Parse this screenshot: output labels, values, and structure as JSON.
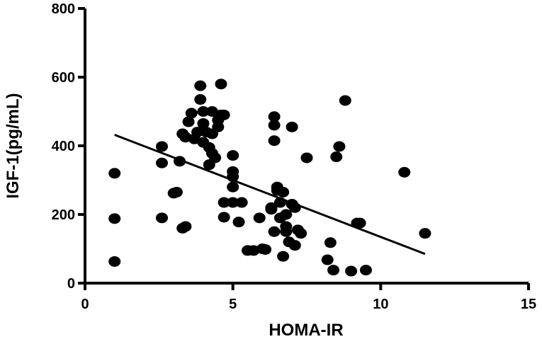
{
  "chart_data": {
    "type": "scatter",
    "title": "",
    "xlabel": "HOMA-IR",
    "ylabel": "IGF-1(pg/mL)",
    "xlim": [
      0,
      15
    ],
    "ylim": [
      0,
      800
    ],
    "xticks": [
      0,
      5,
      10,
      15
    ],
    "yticks": [
      0,
      200,
      400,
      600,
      800
    ],
    "grid": false,
    "legend": "none",
    "points": [
      [
        1.0,
        320
      ],
      [
        1.0,
        188
      ],
      [
        1.0,
        63
      ],
      [
        2.6,
        398
      ],
      [
        2.6,
        350
      ],
      [
        2.6,
        190
      ],
      [
        3.0,
        262
      ],
      [
        3.1,
        265
      ],
      [
        3.2,
        355
      ],
      [
        3.3,
        160
      ],
      [
        3.4,
        165
      ],
      [
        3.3,
        435
      ],
      [
        3.4,
        425
      ],
      [
        3.5,
        470
      ],
      [
        3.6,
        495
      ],
      [
        3.7,
        420
      ],
      [
        3.9,
        575
      ],
      [
        3.9,
        535
      ],
      [
        3.8,
        440
      ],
      [
        4.0,
        500
      ],
      [
        4.0,
        465
      ],
      [
        4.0,
        410
      ],
      [
        4.1,
        440
      ],
      [
        4.2,
        395
      ],
      [
        4.2,
        345
      ],
      [
        4.3,
        500
      ],
      [
        4.3,
        435
      ],
      [
        4.3,
        378
      ],
      [
        4.4,
        365
      ],
      [
        4.5,
        475
      ],
      [
        4.5,
        455
      ],
      [
        4.6,
        490
      ],
      [
        4.7,
        490
      ],
      [
        4.6,
        580
      ],
      [
        4.7,
        235
      ],
      [
        4.7,
        192
      ],
      [
        5.0,
        372
      ],
      [
        5.0,
        325
      ],
      [
        5.0,
        310
      ],
      [
        5.0,
        280
      ],
      [
        5.0,
        235
      ],
      [
        5.2,
        178
      ],
      [
        5.3,
        235
      ],
      [
        5.5,
        95
      ],
      [
        5.7,
        95
      ],
      [
        5.9,
        190
      ],
      [
        6.0,
        100
      ],
      [
        6.1,
        98
      ],
      [
        6.3,
        220
      ],
      [
        6.3,
        215
      ],
      [
        6.4,
        485
      ],
      [
        6.4,
        460
      ],
      [
        6.4,
        415
      ],
      [
        6.5,
        280
      ],
      [
        6.5,
        270
      ],
      [
        6.4,
        150
      ],
      [
        6.6,
        235
      ],
      [
        6.6,
        190
      ],
      [
        6.7,
        265
      ],
      [
        6.8,
        200
      ],
      [
        6.8,
        165
      ],
      [
        6.8,
        150
      ],
      [
        6.7,
        78
      ],
      [
        6.9,
        120
      ],
      [
        7.0,
        455
      ],
      [
        7.0,
        230
      ],
      [
        7.1,
        220
      ],
      [
        7.2,
        155
      ],
      [
        7.1,
        110
      ],
      [
        7.3,
        145
      ],
      [
        7.5,
        365
      ],
      [
        8.2,
        68
      ],
      [
        8.3,
        118
      ],
      [
        8.4,
        38
      ],
      [
        8.5,
        368
      ],
      [
        8.6,
        398
      ],
      [
        8.8,
        532
      ],
      [
        9.0,
        35
      ],
      [
        9.2,
        175
      ],
      [
        9.3,
        175
      ],
      [
        9.5,
        38
      ],
      [
        10.8,
        323
      ],
      [
        11.5,
        145
      ]
    ],
    "fit_line": {
      "x": [
        1.0,
        11.5
      ],
      "y": [
        432,
        85
      ]
    }
  }
}
